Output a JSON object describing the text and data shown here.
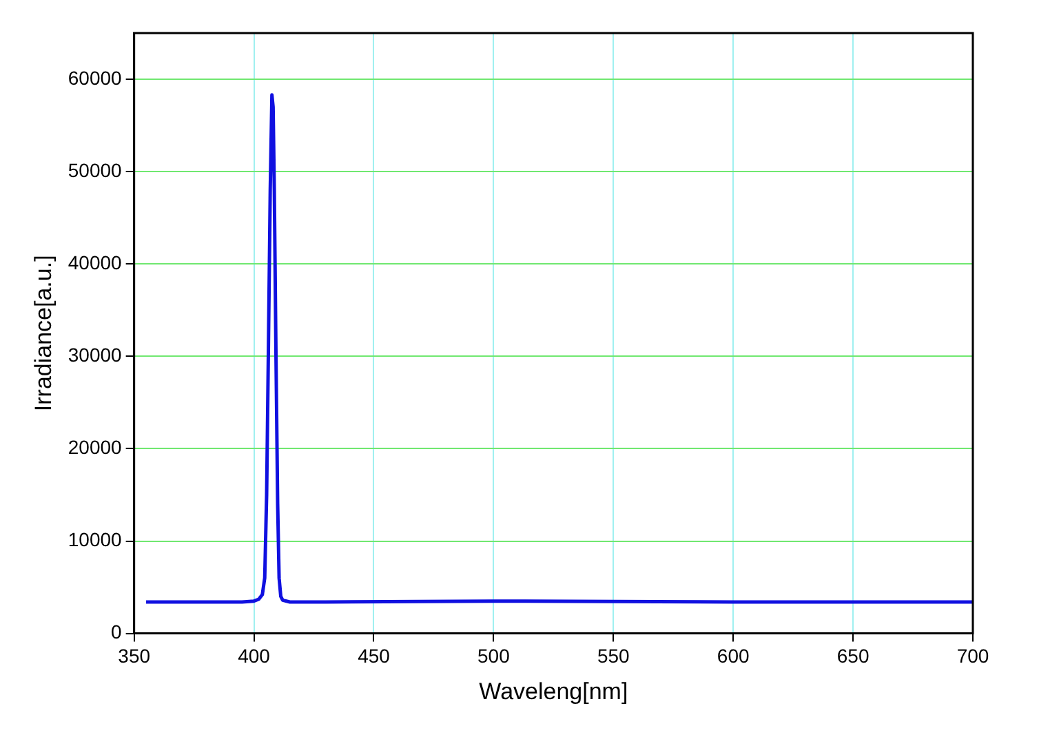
{
  "chart_data": {
    "type": "line",
    "xlabel": "Waveleng[nm]",
    "ylabel": "Irradiance[a.u.]",
    "xlim": [
      350,
      700
    ],
    "xticks": [
      350,
      400,
      450,
      500,
      550,
      600,
      650,
      700
    ],
    "ylim": [
      0,
      65000
    ],
    "yticks": [
      0,
      10000,
      20000,
      30000,
      40000,
      50000,
      60000
    ],
    "grid": true,
    "legend": false,
    "marker": "none",
    "line_style": "solid",
    "series": [
      {
        "color": "#1010e0",
        "x": [
          355,
          380,
          395,
          400,
          402,
          403.5,
          404.5,
          405.3,
          406,
          406.8,
          407.5,
          408,
          408.5,
          409.2,
          409.9,
          410.5,
          411.2,
          412,
          415,
          430,
          500,
          600,
          700
        ],
        "values": [
          3400,
          3400,
          3400,
          3500,
          3700,
          4200,
          6000,
          15000,
          30000,
          48000,
          58300,
          57000,
          48000,
          30000,
          14000,
          6000,
          4000,
          3600,
          3400,
          3400,
          3500,
          3400,
          3400
        ]
      }
    ]
  }
}
